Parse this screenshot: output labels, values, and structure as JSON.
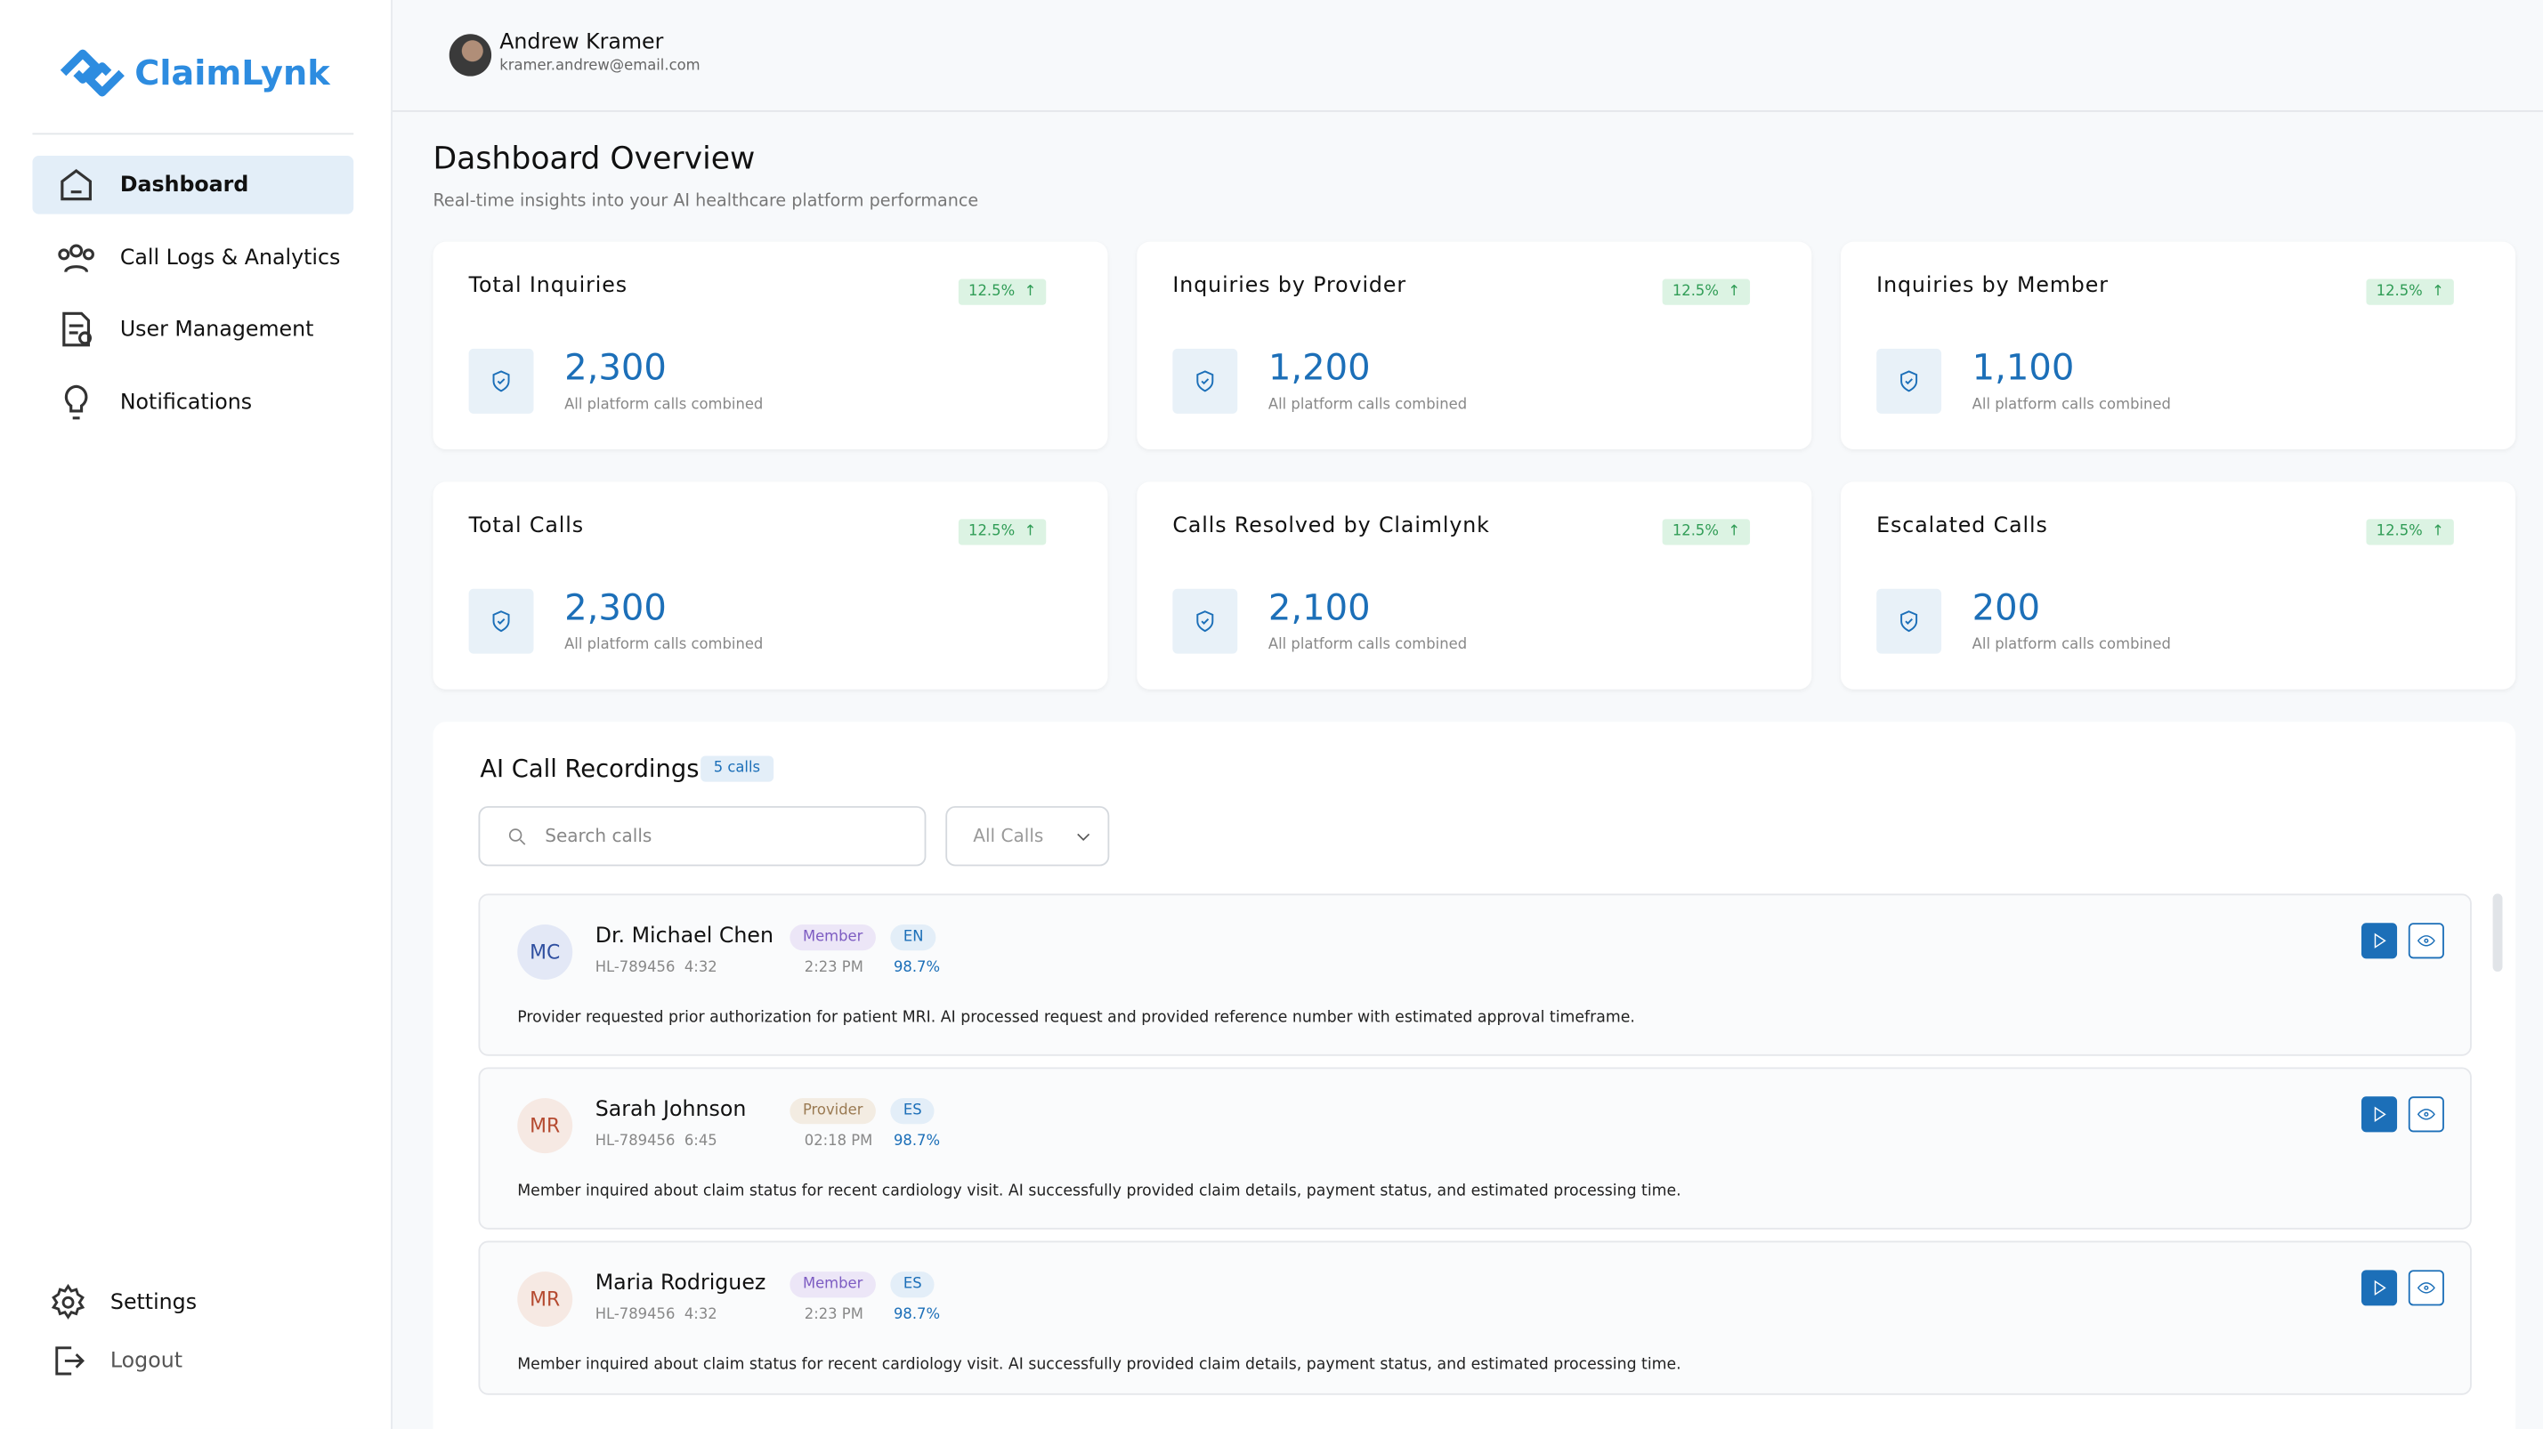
{
  "sidebar": {
    "brand": "ClaimLynk",
    "nav": [
      "Dashboard",
      "Call Logs & Analytics",
      "User Management",
      "Notifications"
    ],
    "bottom": [
      "Settings",
      "Logout"
    ]
  },
  "header": {
    "user_name": "Andrew Kramer",
    "user_email": "kramer.andrew@email.com"
  },
  "overview": {
    "title": "Dashboard Overview",
    "subtitle": "Real-time insights into your AI healthcare platform performance",
    "cards": [
      {
        "title": "Total Inquiries",
        "change": "12.5%",
        "value": "2,300",
        "caption": "All platform calls combined"
      },
      {
        "title": "Inquiries by Provider",
        "change": "12.5%",
        "value": "1,200",
        "caption": "All platform calls combined"
      },
      {
        "title": "Inquiries by Member",
        "change": "12.5%",
        "value": "1,100",
        "caption": "All platform calls combined"
      },
      {
        "title": "Total Calls",
        "change": "12.5%",
        "value": "2,300",
        "caption": "All platform calls combined"
      },
      {
        "title": "Calls Resolved by Claimlynk",
        "change": "12.5%",
        "value": "2,100",
        "caption": "All platform calls combined"
      },
      {
        "title": "Escalated Calls",
        "change": "12.5%",
        "value": "200",
        "caption": "All platform calls combined"
      }
    ]
  },
  "recordings": {
    "title": "AI Call Recordings",
    "count": "5 calls",
    "search_placeholder": "Search calls",
    "filter": "All Calls",
    "calls": [
      {
        "initials": "MC",
        "name": "Dr. Michael Chen",
        "id": "HL-789456",
        "duration": "4:32",
        "role": "Member",
        "time": "2:23 PM",
        "language": "EN",
        "confidence": "98.7%",
        "summary": "Provider requested prior authorization for patient MRI. AI processed request and provided reference number with estimated approval timeframe."
      },
      {
        "initials": "MR",
        "name": "Sarah Johnson",
        "id": "HL-789456",
        "duration": "6:45",
        "role": "Provider",
        "time": "02:18 PM",
        "language": "ES",
        "confidence": "98.7%",
        "summary": "Member inquired about claim status for recent cardiology visit. AI successfully provided claim details, payment status, and estimated processing time."
      },
      {
        "initials": "MR",
        "name": "Maria Rodriguez",
        "id": "HL-789456",
        "duration": "4:32",
        "role": "Member",
        "time": "2:23 PM",
        "language": "ES",
        "confidence": "98.7%",
        "summary": "Member inquired about claim status for recent cardiology visit. AI successfully provided claim details, payment status, and estimated processing time."
      }
    ]
  }
}
